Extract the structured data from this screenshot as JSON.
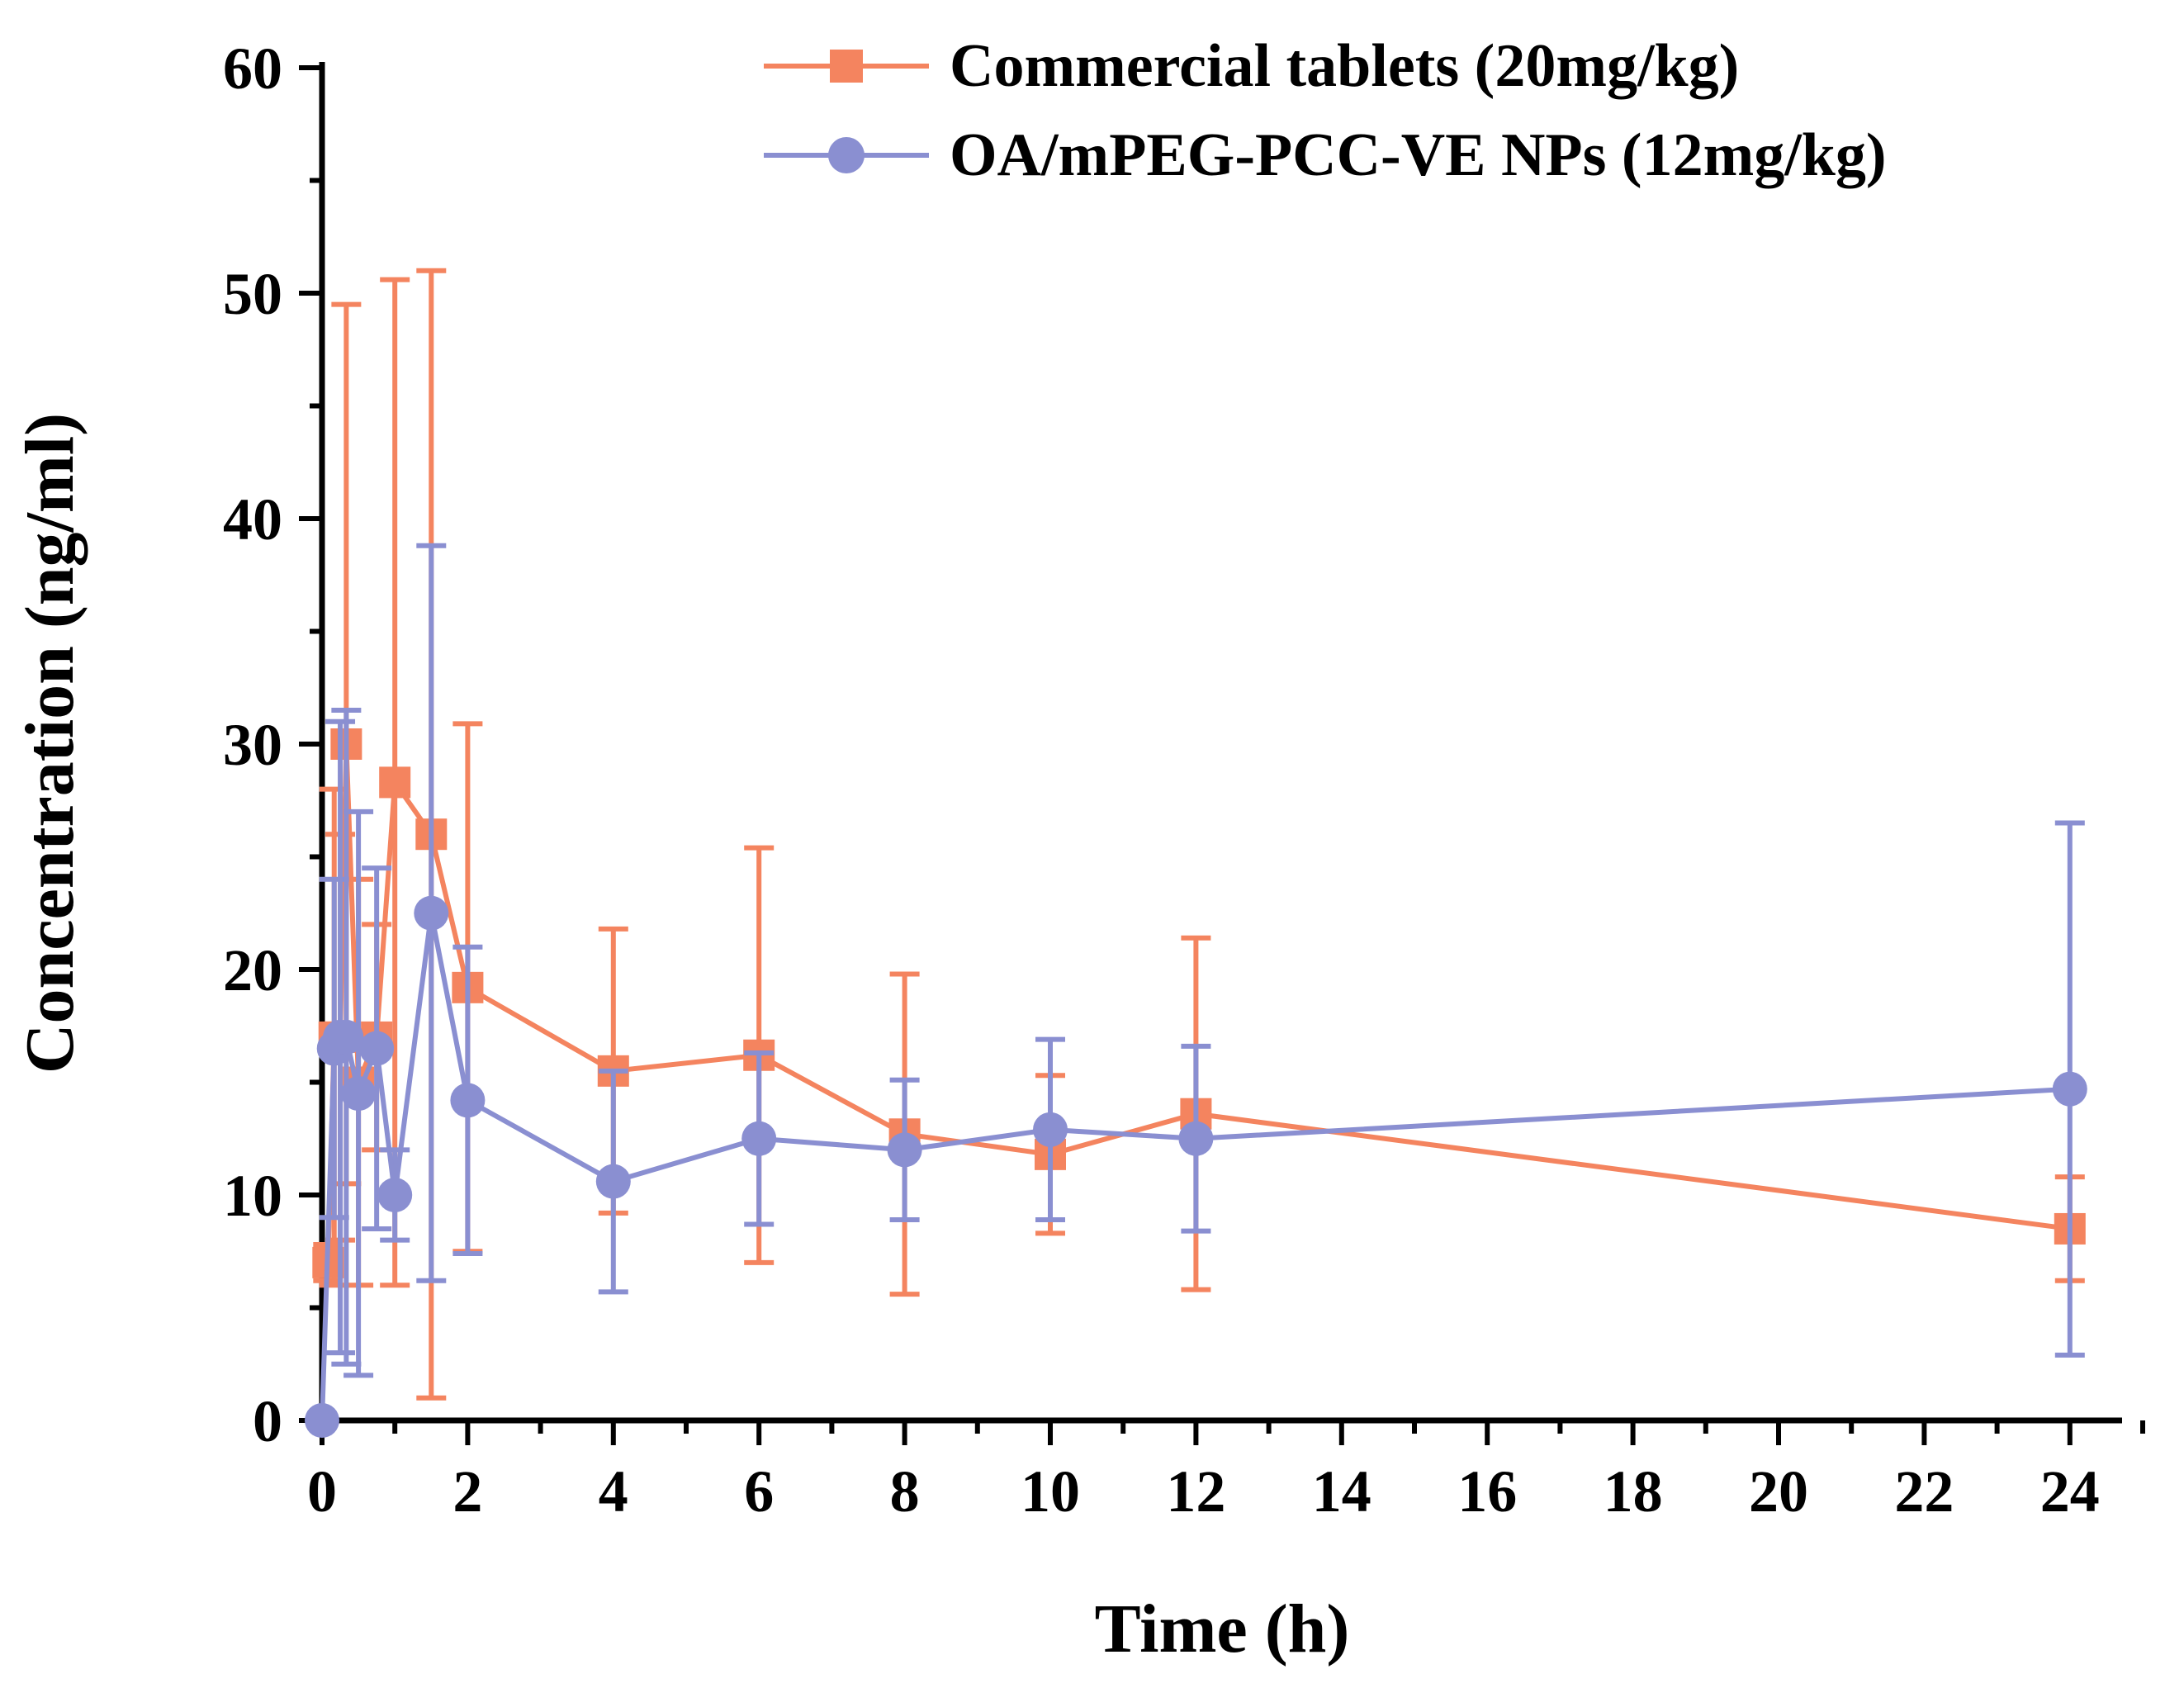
{
  "chart_data": {
    "type": "line",
    "title": "",
    "xlabel": "Time (h)",
    "ylabel": "Concentration (ng/ml)",
    "xlim": [
      0,
      25
    ],
    "ylim": [
      0,
      60
    ],
    "xticks": [
      0,
      2,
      4,
      6,
      8,
      10,
      12,
      14,
      16,
      18,
      20,
      22,
      24
    ],
    "yticks": [
      0,
      10,
      20,
      30,
      40,
      50,
      60
    ],
    "grid": false,
    "legend_position": "top-right",
    "series": [
      {
        "name": "Commercial tablets (20mg/kg)",
        "color": "#f4845f",
        "marker": "square",
        "x": [
          0.083,
          0.167,
          0.25,
          0.333,
          0.5,
          0.75,
          1,
          1.5,
          2,
          4,
          6,
          8,
          10,
          12,
          24
        ],
        "y": [
          7,
          17,
          17,
          30,
          15,
          17,
          28.3,
          26,
          19.2,
          15.5,
          16.2,
          12.7,
          11.8,
          13.6,
          8.5
        ],
        "err": [
          0.8,
          11,
          9,
          19.5,
          9,
          5,
          22.3,
          25,
          11.7,
          6.3,
          9.2,
          7.1,
          3.5,
          7.8,
          2.3
        ]
      },
      {
        "name": "OA/mPEG-PCC-VE NPs (12mg/kg)",
        "color": "#8a8fd1",
        "marker": "circle",
        "x": [
          0,
          0.167,
          0.25,
          0.333,
          0.5,
          0.75,
          1,
          1.5,
          2,
          4,
          6,
          8,
          10,
          12,
          24
        ],
        "y": [
          0,
          16.5,
          17,
          17,
          14.5,
          16.5,
          10,
          22.5,
          14.2,
          10.6,
          12.5,
          12,
          12.9,
          12.5,
          14.7
        ],
        "err": [
          0,
          7.5,
          14,
          14.5,
          12.5,
          8,
          2,
          16.3,
          6.8,
          4.9,
          3.8,
          3.1,
          4.0,
          4.1,
          11.8
        ]
      }
    ]
  }
}
